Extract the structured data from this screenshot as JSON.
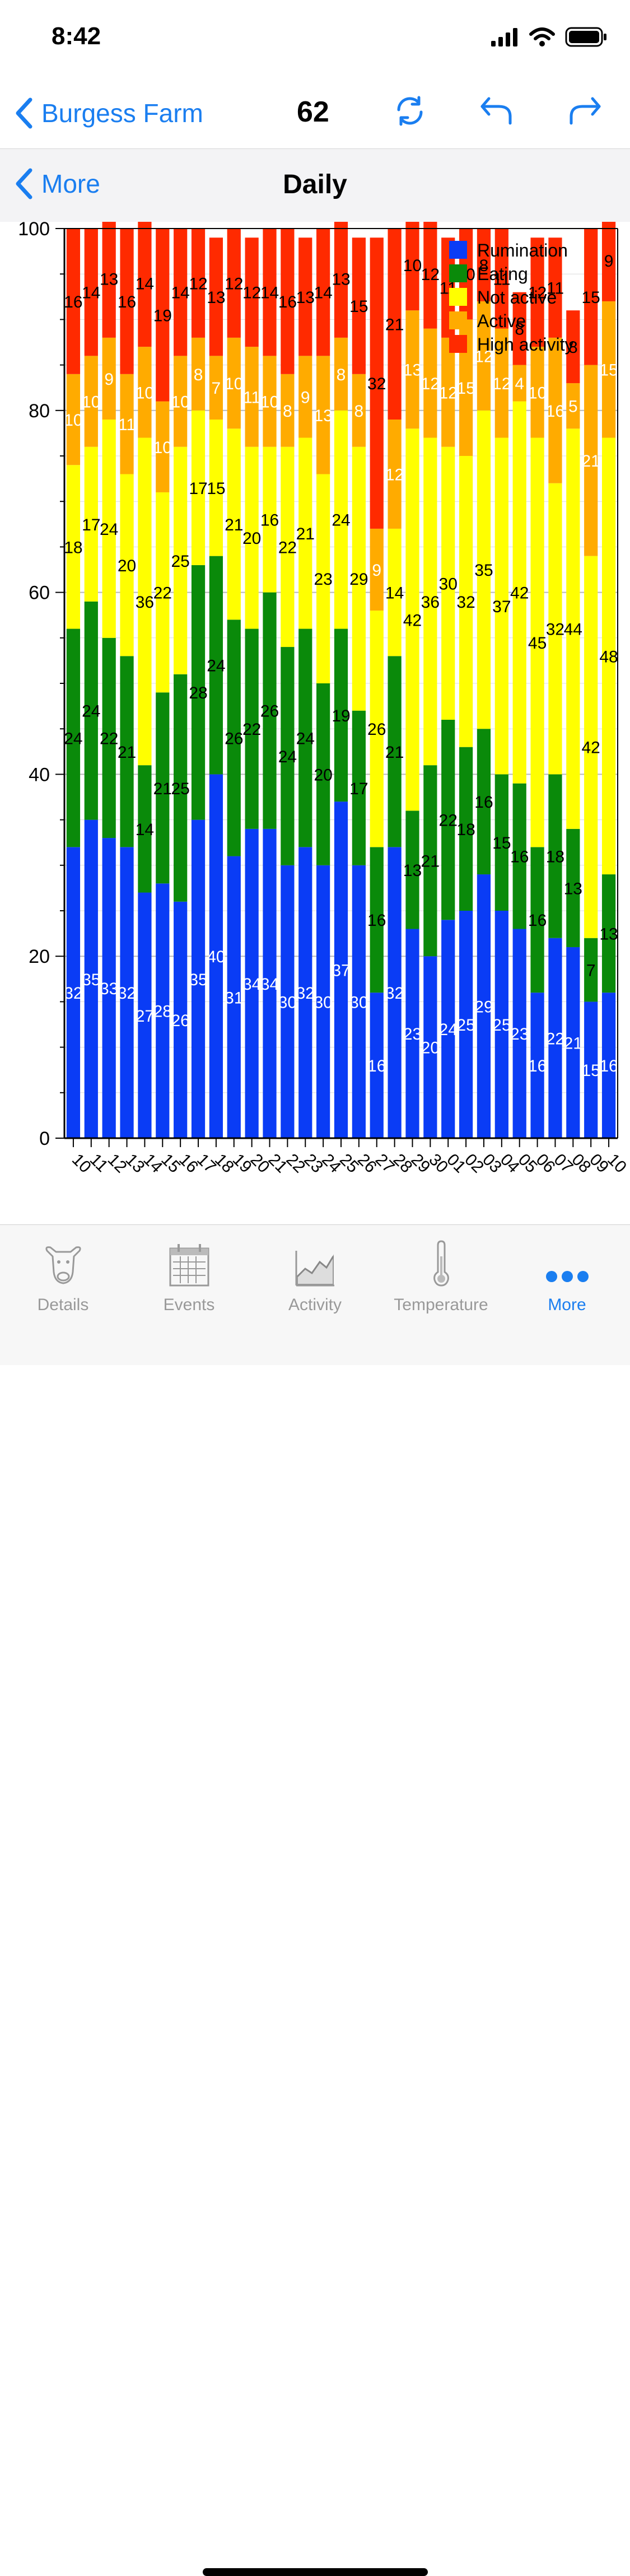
{
  "status_bar": {
    "time": "8:42"
  },
  "nav": {
    "back_label": "Burgess Farm",
    "count": "62"
  },
  "sub_nav": {
    "back_label": "More",
    "title": "Daily"
  },
  "tabs": [
    {
      "label": "Details",
      "icon": "cow-icon"
    },
    {
      "label": "Events",
      "icon": "calendar-icon"
    },
    {
      "label": "Activity",
      "icon": "activity-chart-icon"
    },
    {
      "label": "Temperature",
      "icon": "thermometer-icon"
    },
    {
      "label": "More",
      "icon": "more-dots-icon"
    }
  ],
  "colors": {
    "accent": "#1a7ef0",
    "Rumination": "#0a3cf5",
    "Eating": "#0a8a0a",
    "Not active": "#ffff00",
    "Active": "#ffab00",
    "High activity": "#ff2a00"
  },
  "chart_data": {
    "type": "bar",
    "stacked": true,
    "ylim": [
      0,
      100
    ],
    "yticks": [
      0,
      20,
      40,
      60,
      80,
      100
    ],
    "grid": true,
    "legend_position": "top-right",
    "categories": [
      "10",
      "11",
      "12",
      "13",
      "14",
      "15",
      "16",
      "17",
      "18",
      "19",
      "20",
      "21",
      "22",
      "23",
      "24",
      "25",
      "26",
      "27",
      "28",
      "29",
      "30",
      "01",
      "02",
      "03",
      "04",
      "05",
      "06",
      "07",
      "08",
      "09",
      "10"
    ],
    "series": [
      {
        "name": "Rumination",
        "values": [
          32,
          35,
          33,
          32,
          27,
          28,
          26,
          35,
          40,
          31,
          34,
          34,
          30,
          32,
          30,
          37,
          30,
          16,
          32,
          23,
          20,
          24,
          25,
          29,
          25,
          23,
          16,
          22,
          21,
          15,
          16
        ]
      },
      {
        "name": "Eating",
        "values": [
          24,
          24,
          22,
          21,
          14,
          21,
          25,
          28,
          24,
          26,
          22,
          26,
          24,
          24,
          20,
          19,
          17,
          16,
          21,
          13,
          21,
          22,
          18,
          16,
          15,
          16,
          16,
          18,
          13,
          7,
          13
        ]
      },
      {
        "name": "Not active",
        "values": [
          18,
          17,
          24,
          20,
          36,
          22,
          25,
          17,
          15,
          21,
          20,
          16,
          22,
          21,
          23,
          24,
          29,
          26,
          14,
          42,
          36,
          30,
          32,
          35,
          37,
          42,
          45,
          32,
          44,
          42,
          48
        ]
      },
      {
        "name": "Active",
        "values": [
          10,
          10,
          9,
          11,
          10,
          10,
          10,
          8,
          7,
          10,
          11,
          10,
          8,
          9,
          13,
          8,
          8,
          9,
          12,
          13,
          12,
          12,
          15,
          12,
          12,
          4,
          10,
          16,
          5,
          21,
          15
        ]
      },
      {
        "name": "High activity",
        "values": [
          16,
          14,
          13,
          16,
          14,
          19,
          14,
          12,
          13,
          12,
          12,
          14,
          16,
          13,
          14,
          13,
          15,
          32,
          21,
          10,
          12,
          11,
          10,
          8,
          11,
          8,
          12,
          11,
          8,
          15,
          9
        ]
      }
    ]
  }
}
